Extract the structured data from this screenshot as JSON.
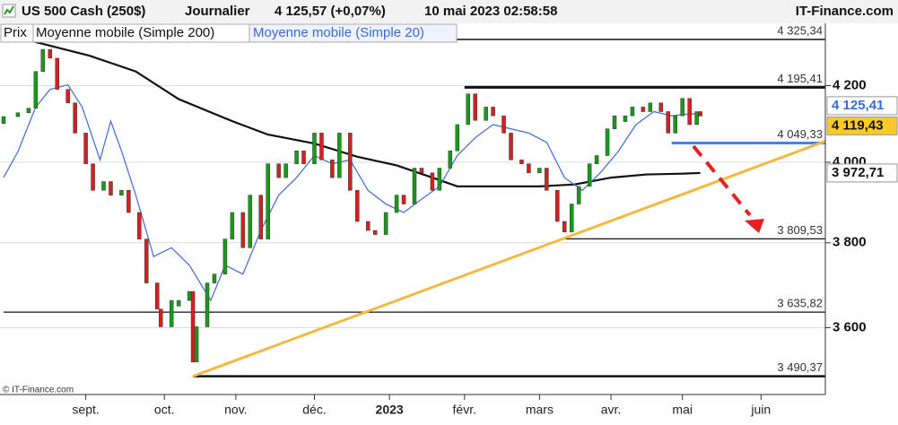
{
  "chart_data": {
    "type": "candlestick",
    "title": "US 500 Cash (250$)",
    "period": "Journalier",
    "quote": "4 125,57 (+0,07%)",
    "datetime": "10 mai 2023 02:58:58",
    "source": "IT-Finance.com",
    "footer": "© IT-Finance.com",
    "price_name": "Prix",
    "up_color": "#1a9a1a",
    "down_color": "#d42020",
    "log_scale": true,
    "grid": true,
    "xlim": [
      0,
      230
    ],
    "ylim": [
      3450,
      4365
    ],
    "yticks": [
      {
        "value": 3600,
        "label": "3 600"
      },
      {
        "value": 3800,
        "label": "3 800"
      },
      {
        "value": 4000,
        "label": "4 000"
      },
      {
        "value": 4200,
        "label": "4 200"
      }
    ],
    "xticks": [
      {
        "value": 23,
        "label": "sept."
      },
      {
        "value": 45,
        "label": "oct."
      },
      {
        "value": 65,
        "label": "nov."
      },
      {
        "value": 87,
        "label": "déc."
      },
      {
        "value": 108,
        "label": "2023"
      },
      {
        "value": 129,
        "label": "févr."
      },
      {
        "value": 150,
        "label": "mars"
      },
      {
        "value": 170,
        "label": "avr."
      },
      {
        "value": 190,
        "label": "mai"
      },
      {
        "value": 212,
        "label": "juin"
      }
    ],
    "x": [
      0,
      4,
      7,
      9,
      11,
      13,
      15,
      18,
      20,
      23,
      25,
      28,
      30,
      33,
      35,
      38,
      40,
      43,
      44,
      47,
      49,
      52,
      53,
      54,
      57,
      59,
      62,
      64,
      67,
      69,
      72,
      74,
      77,
      79,
      82,
      84,
      87,
      89,
      92,
      94,
      97,
      99,
      102,
      104,
      107,
      110,
      112,
      115,
      117,
      120,
      122,
      125,
      127,
      130,
      132,
      135,
      137,
      140,
      142,
      145,
      147,
      150,
      152,
      155,
      157,
      159,
      161,
      164,
      166,
      169,
      171,
      174,
      176,
      179,
      181,
      184,
      186,
      188,
      190,
      192,
      194,
      195
    ],
    "open": [
      4100,
      4118,
      4128,
      4140,
      4238,
      4298,
      4274,
      4190,
      4154,
      4075,
      3996,
      3929,
      3951,
      3917,
      3929,
      3874,
      3809,
      3704,
      3643,
      3602,
      3650,
      3663,
      3684,
      3522,
      3602,
      3704,
      3725,
      3809,
      3874,
      3788,
      3917,
      3809,
      3996,
      3961,
      3996,
      4029,
      3996,
      4075,
      4006,
      3961,
      4075,
      3929,
      3852,
      3830,
      3820,
      3874,
      3917,
      3895,
      3985,
      3973,
      3929,
      3985,
      4029,
      4097,
      4178,
      4108,
      4143,
      4120,
      4075,
      4006,
      3996,
      3973,
      3985,
      3929,
      3852,
      3826,
      3895,
      3939,
      3996,
      4017,
      4086,
      4105,
      4120,
      4143,
      4131,
      4154,
      4131,
      4075,
      4120,
      4166,
      4097,
      4131
    ],
    "close": [
      4118,
      4128,
      4140,
      4238,
      4298,
      4274,
      4190,
      4154,
      4075,
      3996,
      3929,
      3951,
      3917,
      3929,
      3874,
      3809,
      3704,
      3643,
      3602,
      3663,
      3663,
      3684,
      3522,
      3602,
      3704,
      3725,
      3809,
      3874,
      3788,
      3917,
      3809,
      3996,
      3961,
      3996,
      4029,
      3996,
      4075,
      4006,
      3961,
      4075,
      3929,
      3852,
      3830,
      3820,
      3874,
      3917,
      3895,
      3985,
      3973,
      3929,
      3985,
      4029,
      4097,
      4178,
      4108,
      4143,
      4120,
      4075,
      4006,
      3996,
      3973,
      3985,
      3929,
      3852,
      3826,
      3895,
      3939,
      3996,
      4017,
      4086,
      4120,
      4120,
      4143,
      4131,
      4154,
      4131,
      4075,
      4120,
      4166,
      4097,
      4131,
      4119.43
    ],
    "series": [
      {
        "name": "Moyenne mobile (Simple 200)",
        "color": "#111111",
        "x": [
          0,
          9,
          24,
          37,
          49,
          64,
          74,
          87,
          99,
          110,
          120,
          127,
          137,
          150,
          160,
          170,
          180,
          190,
          195
        ],
        "values": [
          4340,
          4318,
          4281,
          4238,
          4164,
          4106,
          4071,
          4048,
          4014,
          3992,
          3961,
          3939,
          3939,
          3939,
          3944,
          3961,
          3969,
          3971,
          3972.71
        ]
      },
      {
        "name": "Moyenne mobile (Simple 20)",
        "color": "#4a74d6",
        "x": [
          0,
          4,
          9,
          13,
          18,
          22,
          27,
          30,
          33,
          37,
          42,
          47,
          52,
          58,
          62,
          67,
          72,
          77,
          82,
          87,
          92,
          97,
          102,
          107,
          112,
          117,
          122,
          127,
          132,
          137,
          142,
          147,
          152,
          157,
          162,
          167,
          172,
          177,
          182,
          187,
          192,
          195
        ],
        "values": [
          3961,
          4027,
          4143,
          4190,
          4202,
          4143,
          4006,
          4106,
          4029,
          3917,
          3767,
          3788,
          3746,
          3663,
          3746,
          3725,
          3830,
          3917,
          3961,
          4017,
          3996,
          4006,
          3929,
          3895,
          3874,
          3907,
          3939,
          4017,
          4063,
          4097,
          4086,
          4075,
          4051,
          3961,
          3929,
          3973,
          4027,
          4097,
          4131,
          4120,
          4125,
          4125.41
        ]
      }
    ],
    "levels": [
      {
        "value": 4325.34,
        "label": "4 325,34",
        "color": "#111111",
        "line_width": 1.5,
        "x_start": 7
      },
      {
        "value": 4195.41,
        "label": "4 195,41",
        "color": "#111111",
        "line_width": 3,
        "x_start": 129
      },
      {
        "value": 4049.33,
        "label": "4 049,33",
        "color": "#4a80e8",
        "line_width": 3,
        "x_start": 187
      },
      {
        "value": 3809.53,
        "label": "3 809,53",
        "color": "#111111",
        "line_width": 1.2,
        "x_start": 156
      },
      {
        "value": 3635.82,
        "label": "3 635,82",
        "color": "#111111",
        "line_width": 1.2,
        "x_start": 0
      },
      {
        "value": 3490.37,
        "label": "3 490,37",
        "color": "#111111",
        "line_width": 2.5,
        "x_start": 53
      }
    ],
    "trendline": {
      "color": "#f5b942",
      "x": [
        53,
        230
      ],
      "values": [
        3490.37,
        4054
      ]
    },
    "price_tags": [
      {
        "value": 4125.41,
        "label": "4 125,41",
        "color": "#3a6ad8",
        "bg": "#ffffff"
      },
      {
        "value": 4119.43,
        "label": "4 119,43",
        "color": "#111111",
        "bg": "#ffc928"
      },
      {
        "value": 3972.71,
        "label": "3 972,71",
        "color": "#111111",
        "bg": "#ffffff"
      }
    ]
  }
}
